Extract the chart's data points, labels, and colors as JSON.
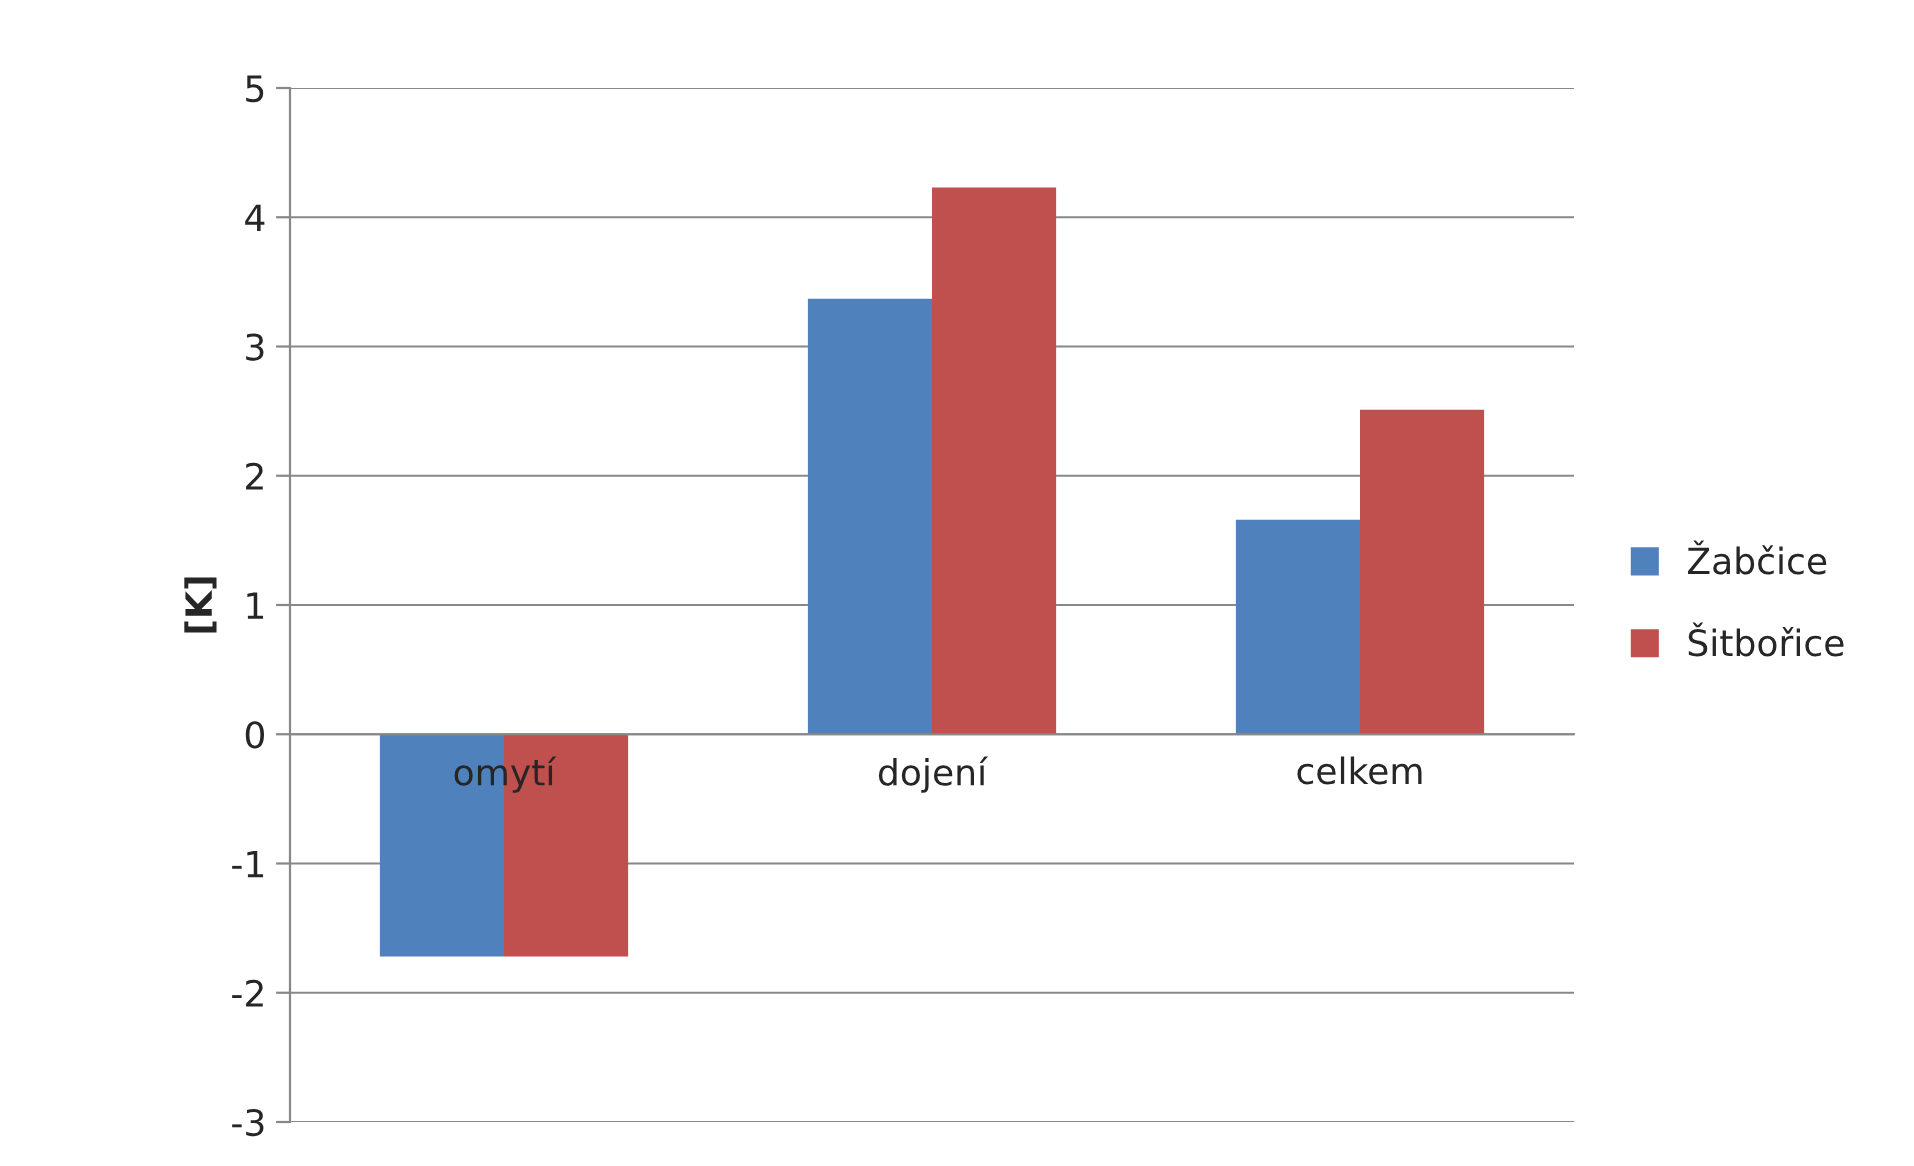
{
  "chart_data": {
    "type": "bar",
    "ylabel": "[K]",
    "categories": [
      "omytí",
      "dojení",
      "celkem"
    ],
    "series": [
      {
        "name": "Žabčice",
        "color": "#4f81bd",
        "values": [
          -1.72,
          3.37,
          1.66
        ]
      },
      {
        "name": "Šitbořice",
        "color": "#c0504d",
        "values": [
          -1.72,
          4.23,
          2.51
        ]
      }
    ],
    "ylim": [
      -3,
      5
    ],
    "yticks": [
      -3,
      -2,
      -1,
      0,
      1,
      2,
      3,
      4,
      5
    ],
    "grid": "y",
    "legend": "right"
  }
}
